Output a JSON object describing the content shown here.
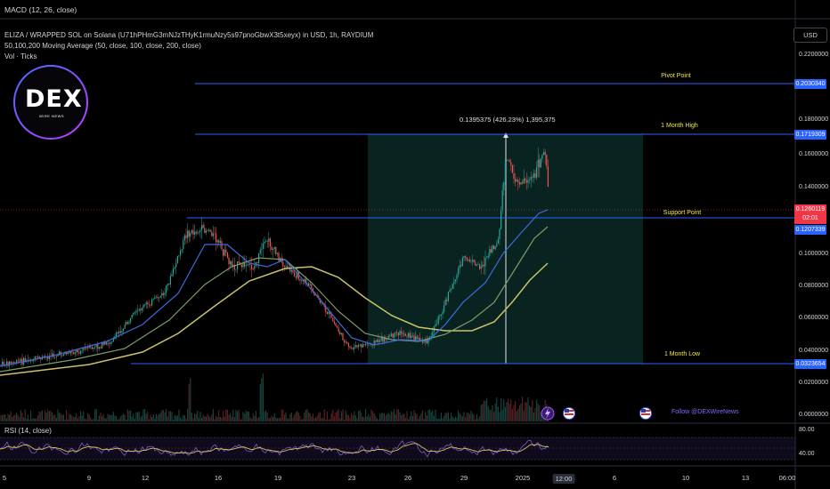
{
  "indicators": {
    "macd_title": "MACD (12, 26, close)",
    "symbol_title": "ELIZA / WRAPPED SOL on Solana (U71hPHmG3mNJzTHyK1rmuNzy5s97pnoGbwX3t5xeyx) in USD, 1h, RAYDIUM",
    "ma_title": "50,100,200 Moving Average (50, close, 100, close, 200, close)",
    "vol_title": "Vol · Ticks",
    "rsi_title": "RSI (14, close)"
  },
  "logo": {
    "main": "DEX",
    "sub": "WIRE NEWS"
  },
  "currency_button": "USD",
  "measurement_label": "0.1395375 (426.23%) 1,395,375",
  "levels": [
    {
      "label": "Pivot Point",
      "price_tag": "0.2030340",
      "value": 0.203034
    },
    {
      "label": "1 Month High",
      "price_tag": "0.1719309",
      "value": 0.1719309
    },
    {
      "label": "Support Point",
      "price_tag": "0.1207339",
      "value": 0.1207339
    },
    {
      "label": "1 Month Low",
      "price_tag": "0.0323654",
      "value": 0.0323654
    }
  ],
  "current_price": {
    "value": "0.1260119",
    "countdown": "02:01"
  },
  "price_axis": [
    "0.2200000",
    "0.1800000",
    "0.1600000",
    "0.1400000",
    "0.1000000",
    "0.0800000",
    "0.0600000",
    "0.0400000",
    "0.0200000",
    "0.0000000"
  ],
  "rsi_axis": [
    "80.00",
    "40.00"
  ],
  "x_axis": [
    "5",
    "9",
    "12",
    "16",
    "19",
    "23",
    "26",
    "29",
    "2025",
    "12:00",
    "6",
    "10",
    "13",
    "06:00"
  ],
  "footer_text": "Follow @DEXWireNews",
  "colors": {
    "background": "#000000",
    "level_line": "#2962ff",
    "annotation": "#f2e64b",
    "current_price": "#f23645",
    "ma50": "#3d6bd8",
    "ma100": "#7a9c6a",
    "ma200": "#c9c26a",
    "rsi": "#d4c45a",
    "measure_box": "#0b2a26"
  }
}
